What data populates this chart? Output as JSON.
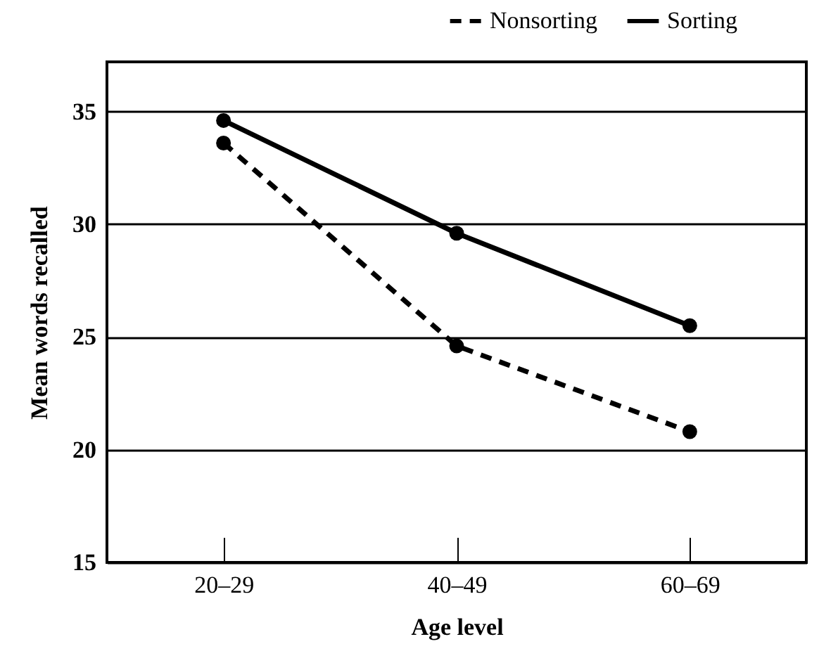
{
  "chart_data": {
    "type": "line",
    "xlabel": "Age level",
    "ylabel": "Mean words recalled",
    "categories": [
      "20–29",
      "40–49",
      "60–69"
    ],
    "series": [
      {
        "name": "Nonsorting",
        "color": "#000000",
        "line_style": "dashed",
        "values": [
          33.6,
          24.6,
          20.8
        ]
      },
      {
        "name": "Sorting",
        "color": "#000000",
        "line_style": "solid",
        "values": [
          34.6,
          29.6,
          25.5
        ]
      }
    ],
    "ylim": [
      15,
      37.2
    ],
    "yticks": [
      15,
      20,
      25,
      30,
      35
    ],
    "grid": "y",
    "legend": "top right",
    "marker": "circle"
  }
}
